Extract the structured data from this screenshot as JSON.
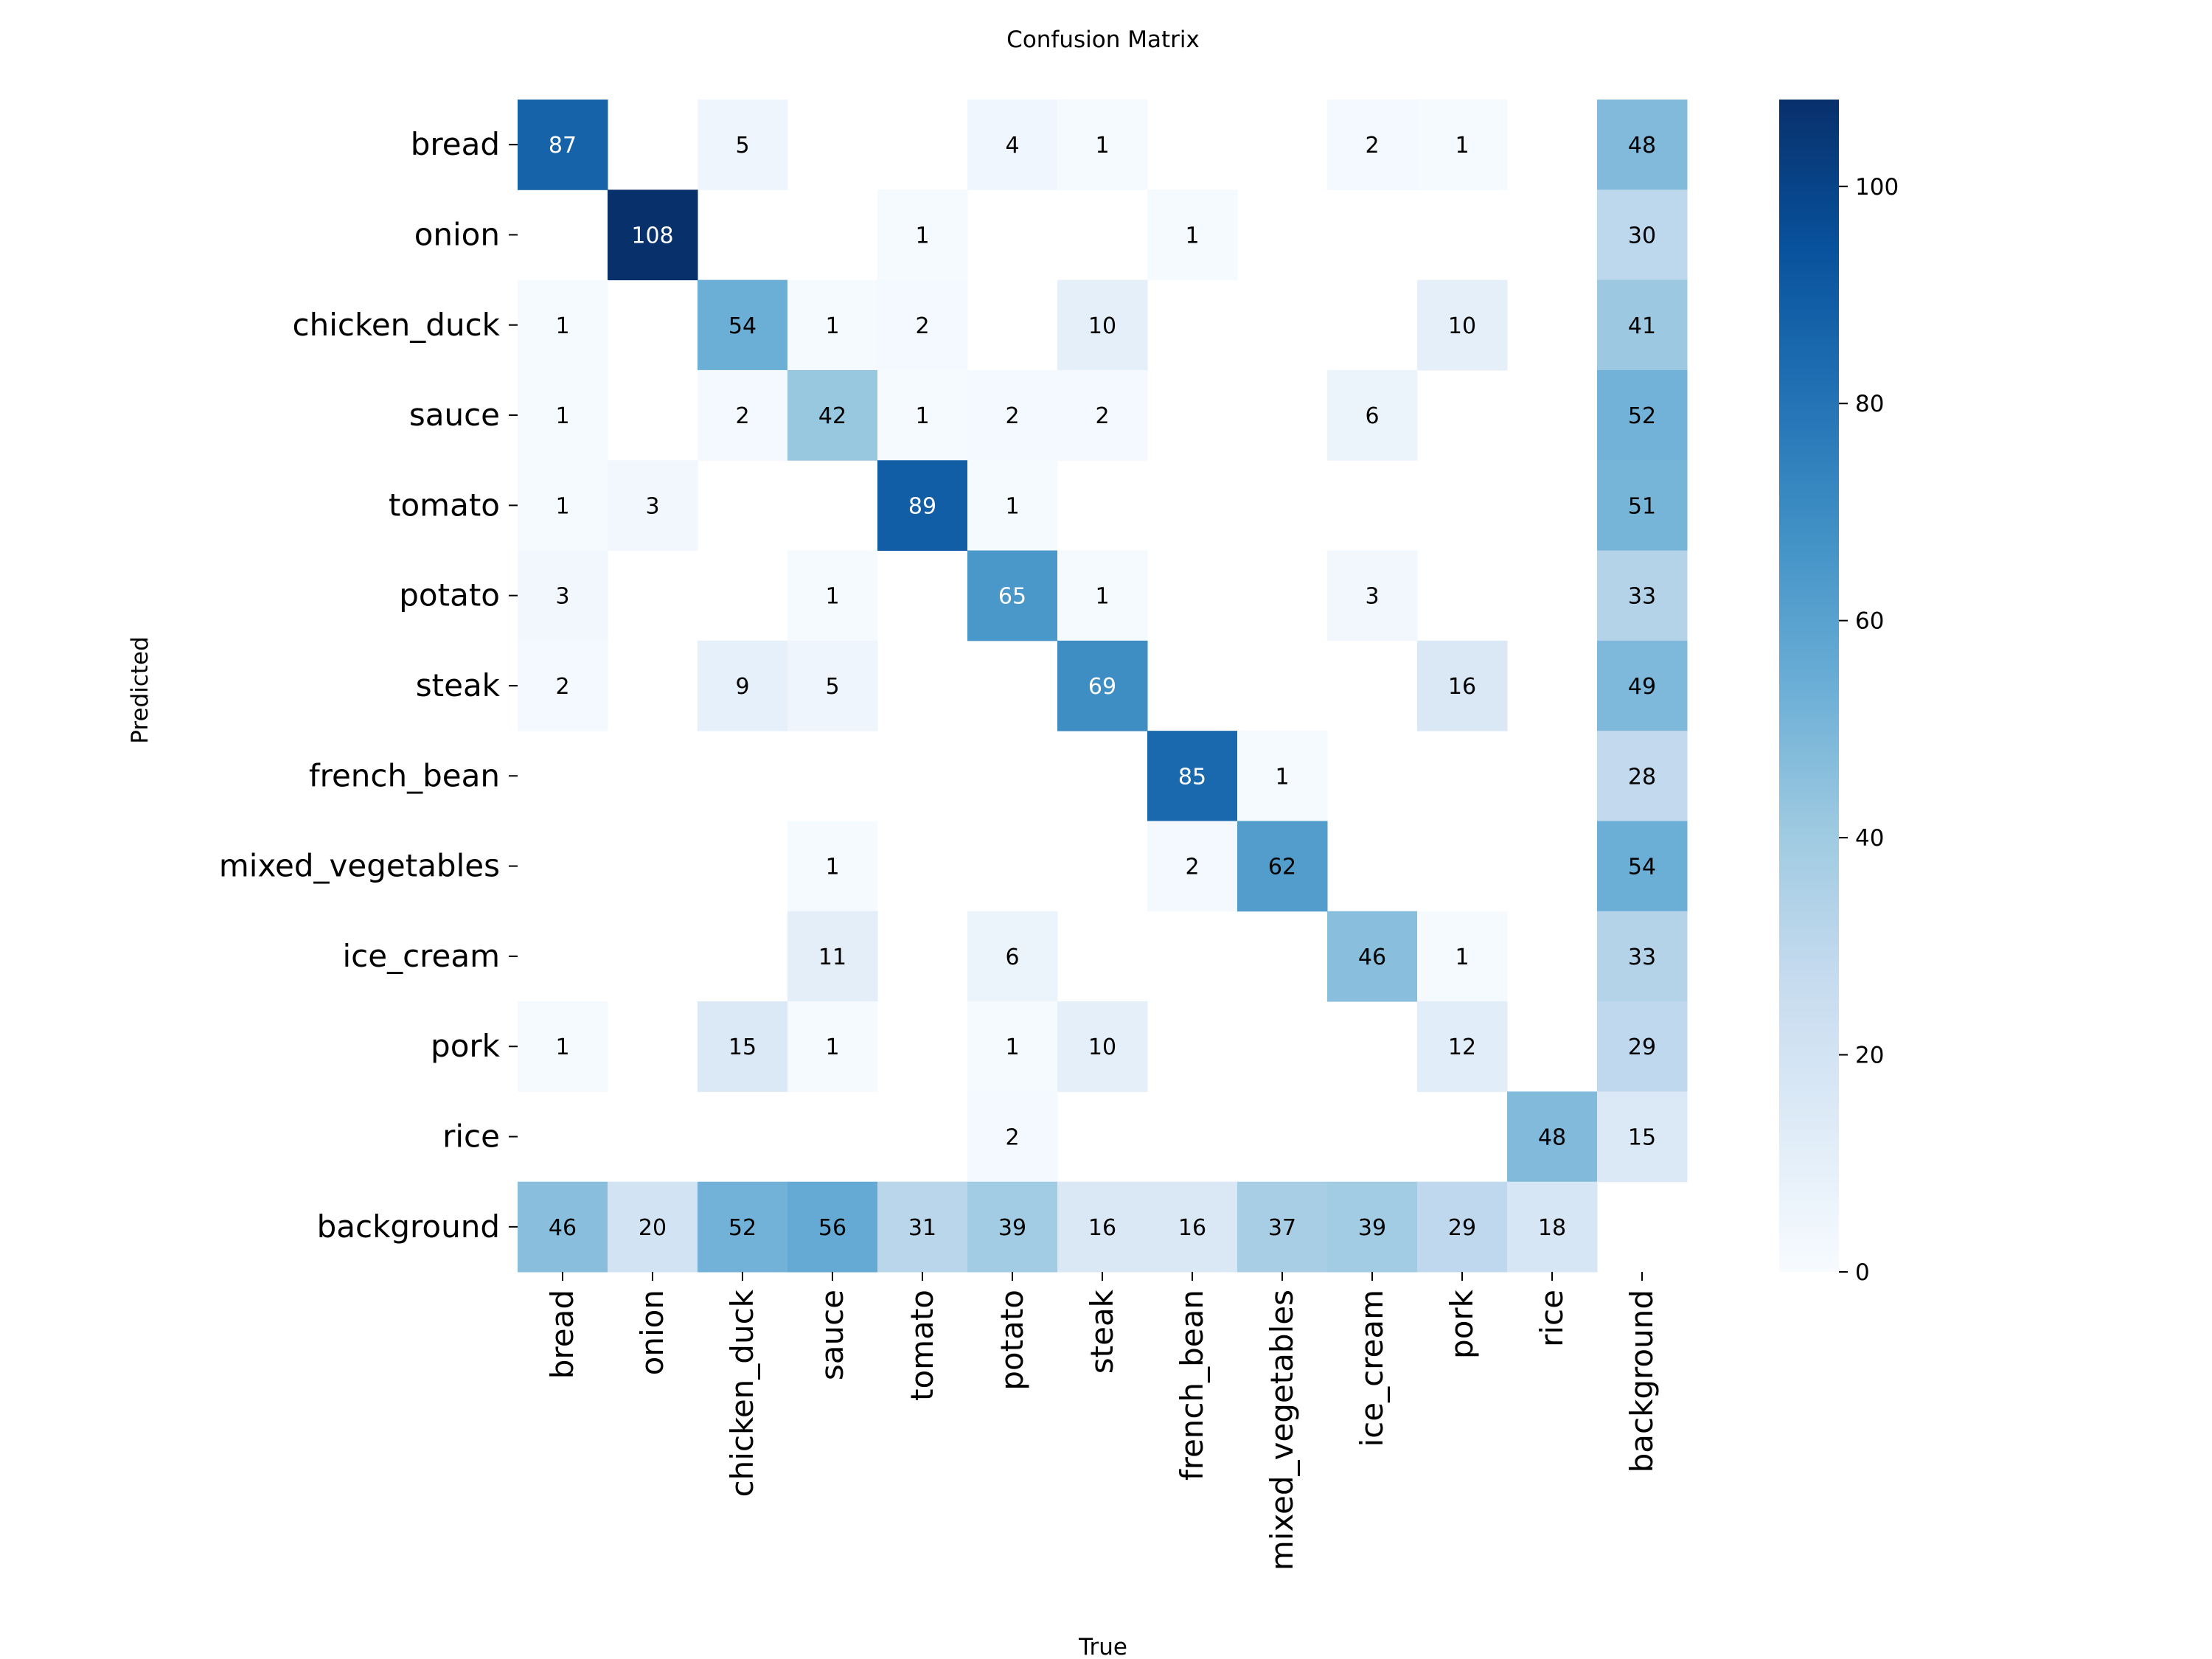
{
  "chart_data": {
    "type": "heatmap",
    "title": "Confusion Matrix",
    "xlabel": "True",
    "ylabel": "Predicted",
    "x_categories": [
      "bread",
      "onion",
      "chicken_duck",
      "sauce",
      "tomato",
      "potato",
      "steak",
      "french_bean",
      "mixed_vegetables",
      "ice_cream",
      "pork",
      "rice",
      "background"
    ],
    "y_categories": [
      "bread",
      "onion",
      "chicken_duck",
      "sauce",
      "tomato",
      "potato",
      "steak",
      "french_bean",
      "mixed_vegetables",
      "ice_cream",
      "pork",
      "rice",
      "background"
    ],
    "values": [
      [
        87,
        0,
        5,
        0,
        0,
        4,
        1,
        0,
        0,
        2,
        1,
        0,
        48
      ],
      [
        0,
        108,
        0,
        0,
        1,
        0,
        0,
        1,
        0,
        0,
        0,
        0,
        30
      ],
      [
        1,
        0,
        54,
        1,
        2,
        0,
        10,
        0,
        0,
        0,
        10,
        0,
        41
      ],
      [
        1,
        0,
        2,
        42,
        1,
        2,
        2,
        0,
        0,
        6,
        0,
        0,
        52
      ],
      [
        1,
        3,
        0,
        0,
        89,
        1,
        0,
        0,
        0,
        0,
        0,
        0,
        51
      ],
      [
        3,
        0,
        0,
        1,
        0,
        65,
        1,
        0,
        0,
        3,
        0,
        0,
        33
      ],
      [
        2,
        0,
        9,
        5,
        0,
        0,
        69,
        0,
        0,
        0,
        16,
        0,
        49
      ],
      [
        0,
        0,
        0,
        0,
        0,
        0,
        0,
        85,
        1,
        0,
        0,
        0,
        28
      ],
      [
        0,
        0,
        0,
        1,
        0,
        0,
        0,
        2,
        62,
        0,
        0,
        0,
        54
      ],
      [
        0,
        0,
        0,
        11,
        0,
        6,
        0,
        0,
        0,
        46,
        1,
        0,
        33
      ],
      [
        1,
        0,
        15,
        1,
        0,
        1,
        10,
        0,
        0,
        0,
        12,
        0,
        29
      ],
      [
        0,
        0,
        0,
        0,
        0,
        2,
        0,
        0,
        0,
        0,
        0,
        48,
        15
      ],
      [
        46,
        20,
        52,
        56,
        31,
        39,
        16,
        16,
        37,
        39,
        29,
        18,
        0
      ]
    ],
    "zero_cells_blank": true,
    "colormap": "Blues",
    "colormap_stops": [
      "#f7fbff",
      "#deebf7",
      "#c6dbef",
      "#9ecae1",
      "#6baed6",
      "#4292c6",
      "#2171b5",
      "#08519c",
      "#08306b"
    ],
    "color_range": [
      0,
      108
    ],
    "colorbar_ticks": [
      0,
      20,
      40,
      60,
      80,
      100
    ],
    "colorbar_placement": "right",
    "grid": false
  }
}
